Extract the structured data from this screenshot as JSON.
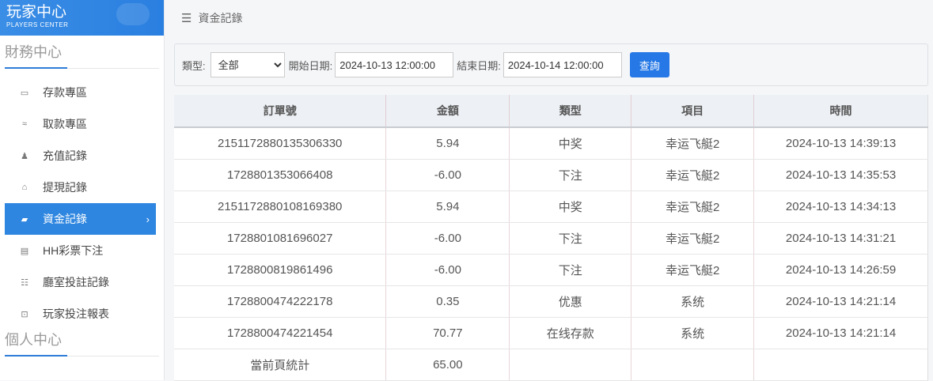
{
  "logo": {
    "title": "玩家中心",
    "subtitle": "PLAYERS CENTER"
  },
  "sidebar": {
    "section1": "財務中心",
    "section2": "個人中心",
    "items": [
      {
        "label": "存款專區",
        "icon": "card-icon"
      },
      {
        "label": "取款專區",
        "icon": "hand-money-icon"
      },
      {
        "label": "充值記錄",
        "icon": "money-bag-icon"
      },
      {
        "label": "提現記錄",
        "icon": "tag-icon"
      },
      {
        "label": "資金記錄",
        "icon": "wallet-icon",
        "active": true
      },
      {
        "label": "HH彩票下注",
        "icon": "list-icon"
      },
      {
        "label": "廳室投註記錄",
        "icon": "bullet-list-icon"
      },
      {
        "label": "玩家投注報表",
        "icon": "chart-icon"
      }
    ]
  },
  "header": {
    "title": "資金記錄"
  },
  "filter": {
    "type_label": "類型:",
    "type_value": "全部",
    "start_label": "開始日期:",
    "start_value": "2024-10-13 12:00:00",
    "end_label": "結束日期:",
    "end_value": "2024-10-14 12:00:00",
    "search": "查詢"
  },
  "table": {
    "headers": [
      "訂單號",
      "金額",
      "類型",
      "項目",
      "時間"
    ],
    "rows": [
      [
        "2151172880135306330",
        "5.94",
        "中奖",
        "幸运飞艇2",
        "2024-10-13 14:39:13"
      ],
      [
        "1728801353066408",
        "-6.00",
        "下注",
        "幸运飞艇2",
        "2024-10-13 14:35:53"
      ],
      [
        "2151172880108169380",
        "5.94",
        "中奖",
        "幸运飞艇2",
        "2024-10-13 14:34:13"
      ],
      [
        "1728801081696027",
        "-6.00",
        "下注",
        "幸运飞艇2",
        "2024-10-13 14:31:21"
      ],
      [
        "1728800819861496",
        "-6.00",
        "下注",
        "幸运飞艇2",
        "2024-10-13 14:26:59"
      ],
      [
        "1728800474222178",
        "0.35",
        "优惠",
        "系统",
        "2024-10-13 14:21:14"
      ],
      [
        "1728800474221454",
        "70.77",
        "在线存款",
        "系统",
        "2024-10-13 14:21:14"
      ]
    ],
    "summary": {
      "label": "當前頁統計",
      "amount": "65.00"
    }
  },
  "colors": {
    "accent": "#2e86e0",
    "button": "#2678e6"
  }
}
